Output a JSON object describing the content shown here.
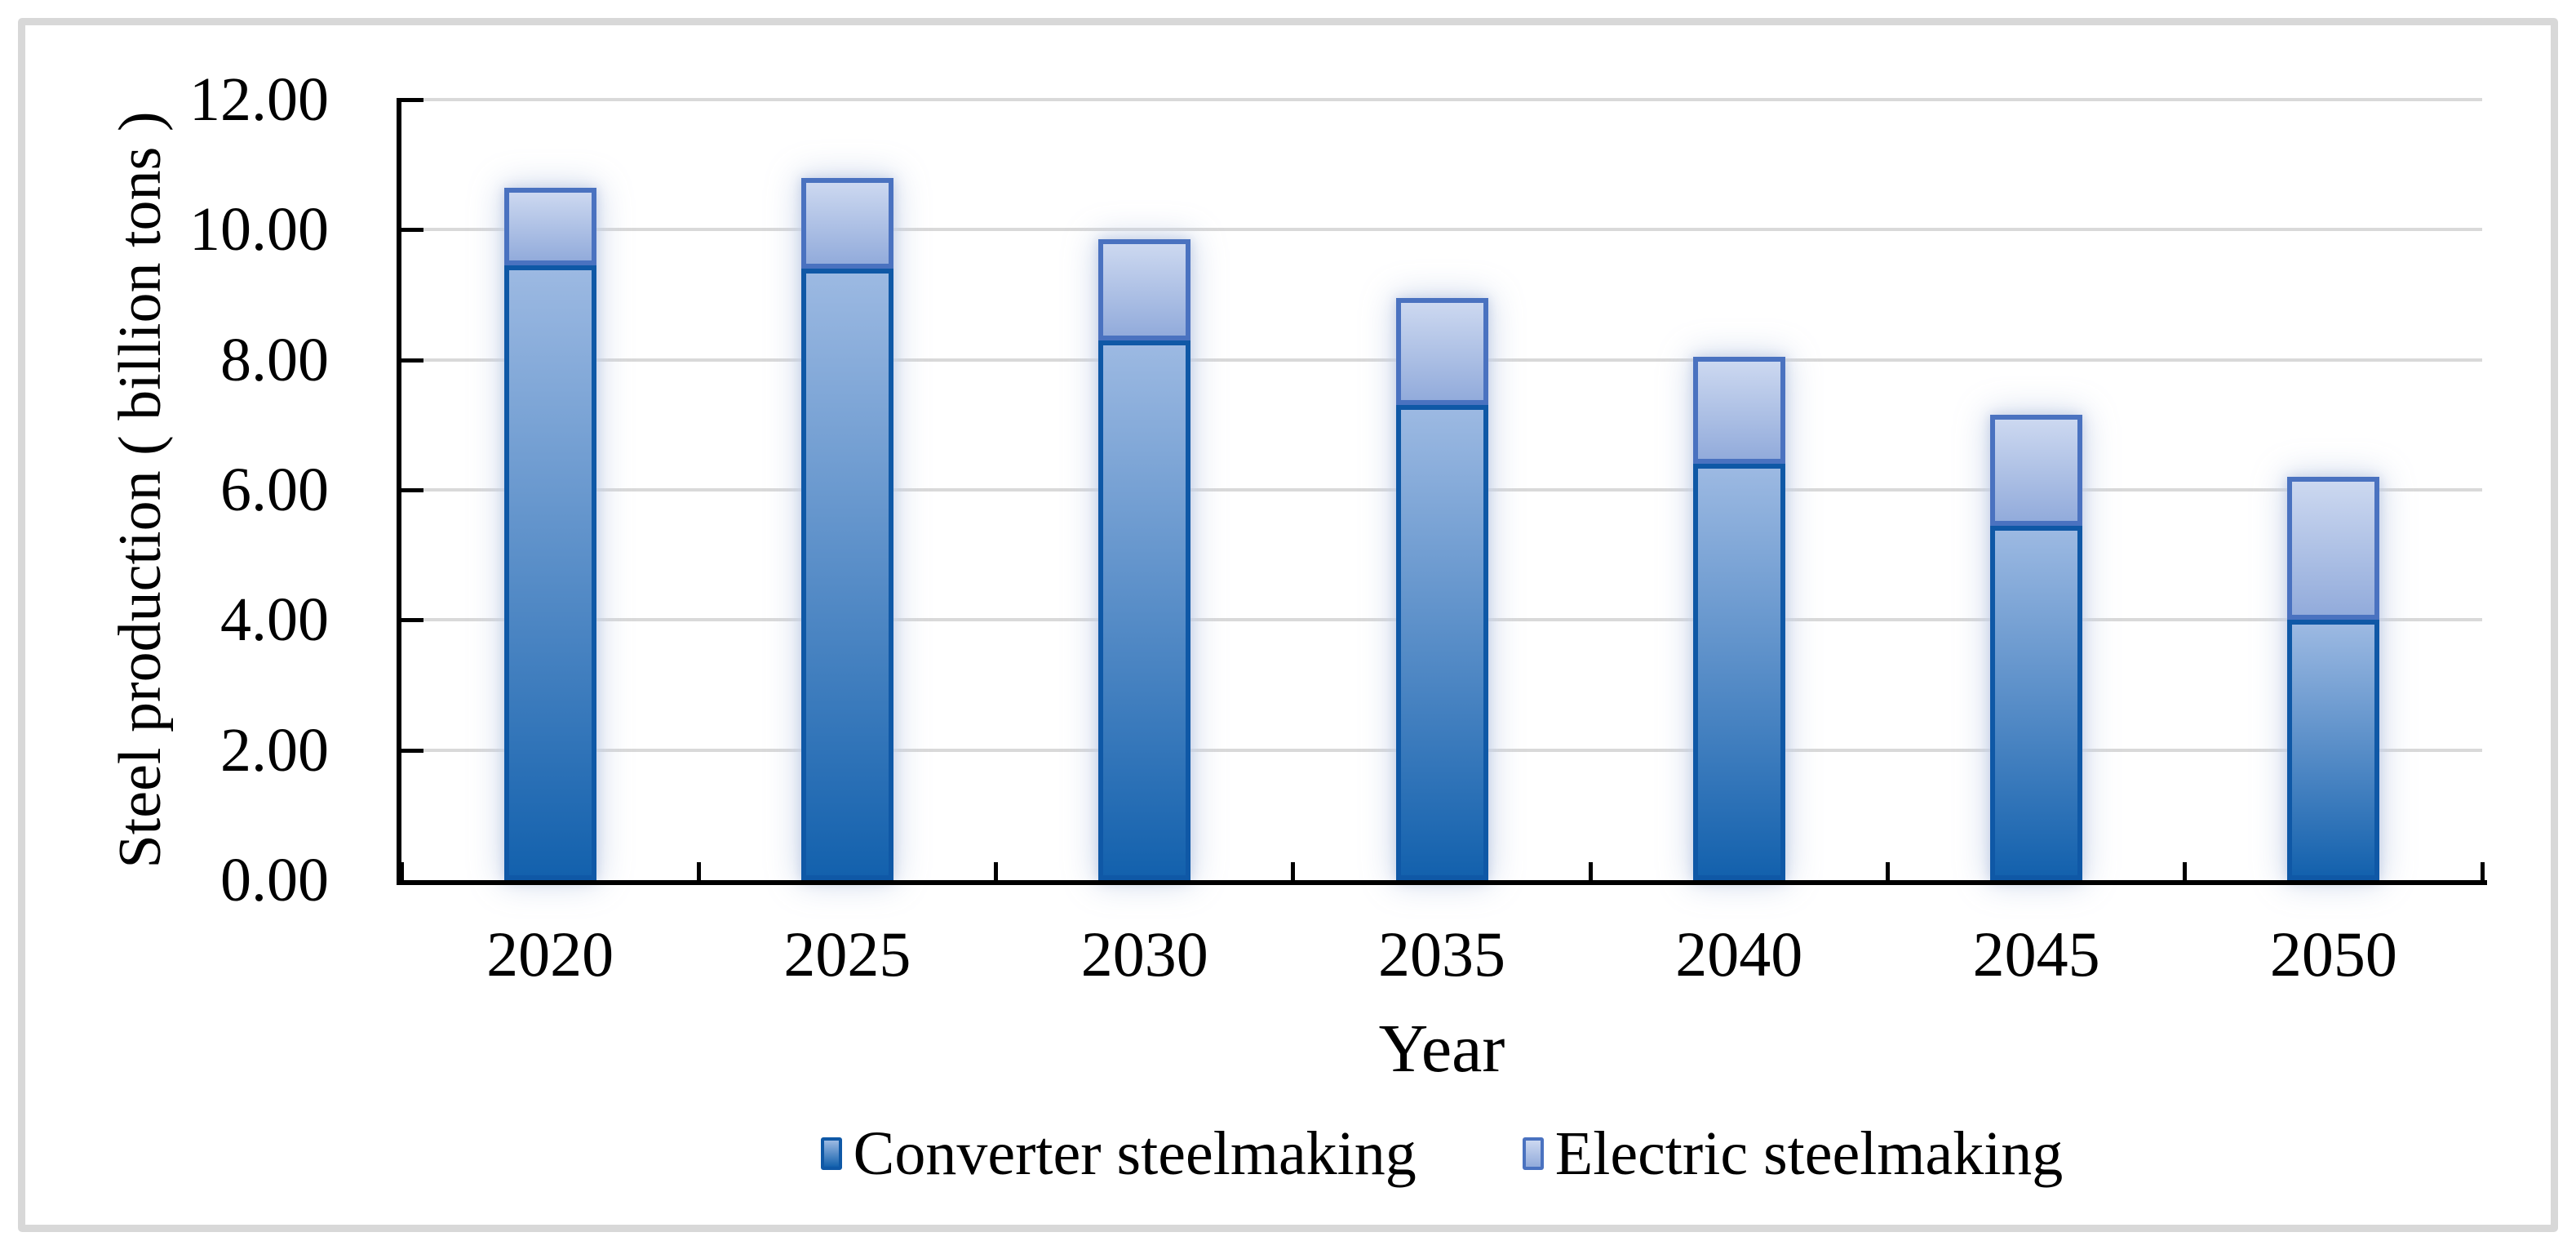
{
  "figure": {
    "background": "#FFFFFF",
    "frame_color": "#D8D8D8",
    "text_color": "#000000"
  },
  "chart_data": {
    "type": "bar",
    "stacked": true,
    "title": "",
    "xlabel": "Year",
    "ylabel": "Steel production ( billion tons )",
    "categories": [
      "2020",
      "2025",
      "2030",
      "2035",
      "2040",
      "2045",
      "2050"
    ],
    "series": [
      {
        "name": "Converter steelmaking",
        "values": [
          9.45,
          9.4,
          8.3,
          7.3,
          6.4,
          5.45,
          4.0
        ],
        "border_color": "#0F58A6",
        "gradient_top": "#9CB9E2",
        "gradient_bottom": "#1361AD"
      },
      {
        "name": "Electric steelmaking",
        "values": [
          1.2,
          1.4,
          1.55,
          1.65,
          1.65,
          1.7,
          2.2
        ],
        "border_color": "#4A72C0",
        "gradient_top": "#CCD8F0",
        "gradient_bottom": "#92ABDB"
      }
    ],
    "totals": [
      10.65,
      10.8,
      9.85,
      8.95,
      8.05,
      7.15,
      6.2
    ],
    "ylim": [
      0,
      12
    ],
    "ytick_step": 2,
    "ytick_labels": [
      "0.00",
      "2.00",
      "4.00",
      "6.00",
      "8.00",
      "10.00",
      "12.00"
    ],
    "grid": true,
    "gridline_color": "#D9D9D9",
    "axis_color": "#000000",
    "legend_position": "bottom"
  }
}
